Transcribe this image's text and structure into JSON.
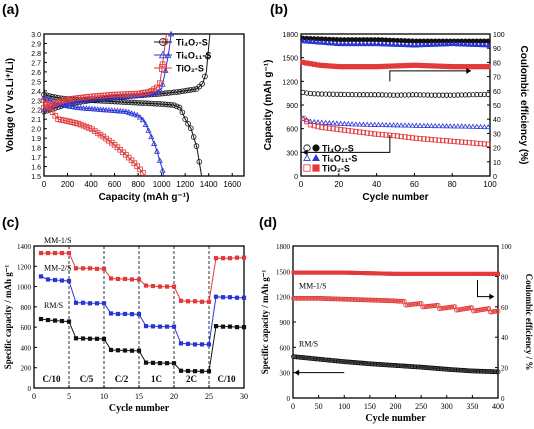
{
  "figure_title": "",
  "chart_data": [
    {
      "panel_label": "(a)",
      "type": "line",
      "title": "",
      "xlabel": "Capacity (mAh g⁻¹)",
      "ylabel": "Voltage (V vs.Li⁺/Li)",
      "xlim": [
        0,
        1700
      ],
      "ylim": [
        1.5,
        3.0
      ],
      "xticks": [
        "0",
        "200",
        "400",
        "600",
        "800",
        "1000",
        "1200",
        "1400",
        "1600"
      ],
      "yticks": [
        "1.5",
        "1.6",
        "1.7",
        "1.8",
        "1.9",
        "2.0",
        "2.1",
        "2.2",
        "2.3",
        "2.4",
        "2.5",
        "2.6",
        "2.7",
        "2.8",
        "2.9",
        "3.0"
      ],
      "legend_position": "top-right",
      "series": [
        {
          "name": "Ti₄O₇-S",
          "color": "#111111",
          "marker": "circle",
          "discharge": [
            [
              0,
              2.36
            ],
            [
              60,
              2.34
            ],
            [
              150,
              2.32
            ],
            [
              250,
              2.31
            ],
            [
              400,
              2.3
            ],
            [
              550,
              2.29
            ],
            [
              700,
              2.28
            ],
            [
              850,
              2.27
            ],
            [
              1000,
              2.26
            ],
            [
              1100,
              2.25
            ],
            [
              1160,
              2.22
            ],
            [
              1200,
              2.1
            ],
            [
              1250,
              2.0
            ],
            [
              1300,
              1.8
            ],
            [
              1340,
              1.5
            ]
          ],
          "charge": [
            [
              0,
              2.18
            ],
            [
              100,
              2.22
            ],
            [
              200,
              2.26
            ],
            [
              400,
              2.3
            ],
            [
              600,
              2.33
            ],
            [
              800,
              2.35
            ],
            [
              1000,
              2.37
            ],
            [
              1150,
              2.39
            ],
            [
              1300,
              2.42
            ],
            [
              1350,
              2.48
            ],
            [
              1380,
              2.6
            ],
            [
              1395,
              2.8
            ],
            [
              1410,
              3.0
            ]
          ]
        },
        {
          "name": "Ti₆O₁₁-S",
          "color": "#2b35d6",
          "marker": "triangle",
          "discharge": [
            [
              0,
              2.33
            ],
            [
              100,
              2.27
            ],
            [
              200,
              2.24
            ],
            [
              300,
              2.22
            ],
            [
              400,
              2.21
            ],
            [
              500,
              2.2
            ],
            [
              600,
              2.19
            ],
            [
              700,
              2.18
            ],
            [
              800,
              2.14
            ],
            [
              850,
              2.08
            ],
            [
              900,
              1.95
            ],
            [
              950,
              1.8
            ],
            [
              1000,
              1.6
            ],
            [
              1020,
              1.5
            ]
          ],
          "charge": [
            [
              0,
              2.2
            ],
            [
              100,
              2.25
            ],
            [
              200,
              2.28
            ],
            [
              400,
              2.31
            ],
            [
              600,
              2.33
            ],
            [
              800,
              2.35
            ],
            [
              950,
              2.38
            ],
            [
              1000,
              2.42
            ],
            [
              1030,
              2.6
            ],
            [
              1060,
              2.8
            ],
            [
              1080,
              3.0
            ]
          ]
        },
        {
          "name": "TiO₂-S",
          "color": "#e23a3a",
          "marker": "square",
          "discharge": [
            [
              0,
              2.3
            ],
            [
              40,
              2.24
            ],
            [
              80,
              2.16
            ],
            [
              120,
              2.1
            ],
            [
              200,
              2.08
            ],
            [
              300,
              2.05
            ],
            [
              400,
              2.0
            ],
            [
              500,
              1.92
            ],
            [
              600,
              1.83
            ],
            [
              700,
              1.72
            ],
            [
              780,
              1.62
            ],
            [
              830,
              1.55
            ],
            [
              860,
              1.5
            ]
          ],
          "charge": [
            [
              0,
              2.22
            ],
            [
              100,
              2.27
            ],
            [
              200,
              2.31
            ],
            [
              400,
              2.34
            ],
            [
              600,
              2.36
            ],
            [
              800,
              2.37
            ],
            [
              900,
              2.39
            ],
            [
              980,
              2.45
            ],
            [
              1000,
              2.6
            ],
            [
              1020,
              2.8
            ],
            [
              1040,
              3.0
            ]
          ]
        }
      ]
    },
    {
      "panel_label": "(b)",
      "type": "scatter",
      "title": "",
      "xlabel": "Cycle number",
      "ylabel": "Capacity (mAh g⁻¹)",
      "ylabel_right": "Coulombic efficiency (%)",
      "xlim": [
        0,
        100
      ],
      "ylim": [
        0,
        1800
      ],
      "ylim_right": [
        0,
        100
      ],
      "xticks": [
        "0",
        "20",
        "40",
        "60",
        "80",
        "100"
      ],
      "yticks": [
        "0",
        "300",
        "600",
        "900",
        "1200",
        "1500",
        "1800"
      ],
      "yticks_right": [
        "0",
        "10",
        "20",
        "30",
        "40",
        "50",
        "60",
        "70",
        "80",
        "90",
        "100"
      ],
      "legend_position": "bottom-left",
      "series": [
        {
          "name": "Ti₄O₇-S",
          "color": "#111111",
          "capacity": [
            [
              1,
              1060
            ],
            [
              5,
              1045
            ],
            [
              10,
              1040
            ],
            [
              20,
              1035
            ],
            [
              30,
              1030
            ],
            [
              40,
              1030
            ],
            [
              50,
              1025
            ],
            [
              60,
              1030
            ],
            [
              70,
              1025
            ],
            [
              80,
              1025
            ],
            [
              90,
              1030
            ],
            [
              100,
              1035
            ]
          ],
          "efficiency": [
            [
              1,
              97
            ],
            [
              20,
              96
            ],
            [
              40,
              96
            ],
            [
              60,
              95
            ],
            [
              80,
              95
            ],
            [
              100,
              95
            ]
          ]
        },
        {
          "name": "Ti₆O₁₁-S",
          "color": "#2b35d6",
          "capacity": [
            [
              1,
              730
            ],
            [
              5,
              690
            ],
            [
              10,
              680
            ],
            [
              20,
              665
            ],
            [
              30,
              655
            ],
            [
              40,
              650
            ],
            [
              50,
              645
            ],
            [
              60,
              640
            ],
            [
              70,
              635
            ],
            [
              80,
              632
            ],
            [
              90,
              628
            ],
            [
              100,
              620
            ]
          ],
          "efficiency": [
            [
              1,
              95
            ],
            [
              20,
              93
            ],
            [
              40,
              93
            ],
            [
              60,
              92
            ],
            [
              80,
              93
            ],
            [
              100,
              92
            ]
          ]
        },
        {
          "name": "TiO₂-S",
          "color": "#e23a3a",
          "capacity": [
            [
              1,
              730
            ],
            [
              5,
              650
            ],
            [
              10,
              620
            ],
            [
              20,
              590
            ],
            [
              30,
              560
            ],
            [
              40,
              530
            ],
            [
              50,
              510
            ],
            [
              60,
              480
            ],
            [
              70,
              460
            ],
            [
              80,
              440
            ],
            [
              90,
              420
            ],
            [
              100,
              400
            ]
          ],
          "efficiency": [
            [
              1,
              80
            ],
            [
              10,
              78
            ],
            [
              20,
              77
            ],
            [
              40,
              77
            ],
            [
              60,
              78
            ],
            [
              80,
              77
            ],
            [
              100,
              77
            ]
          ]
        }
      ]
    },
    {
      "panel_label": "(c)",
      "type": "scatter",
      "title": "",
      "xlabel": "Cycle number",
      "ylabel": "Specific capacity / mAh g⁻¹",
      "xlim": [
        0,
        30
      ],
      "ylim": [
        0,
        1400
      ],
      "xticks": [
        "0",
        "5",
        "10",
        "15",
        "20",
        "25",
        "30"
      ],
      "yticks": [
        "0",
        "200",
        "400",
        "600",
        "800",
        "1000",
        "1200",
        "1400"
      ],
      "rate_labels": [
        "C/10",
        "C/5",
        "C/2",
        "1C",
        "2C",
        "C/10"
      ],
      "rate_boundaries": [
        5,
        10,
        15,
        20,
        25
      ],
      "series": [
        {
          "name": "MM-1/S",
          "color": "#e23a3a",
          "values": [
            1330,
            1330,
            1330,
            1330,
            1330,
            1180,
            1180,
            1180,
            1175,
            1175,
            1080,
            1075,
            1075,
            1070,
            1070,
            1010,
            1005,
            1000,
            1000,
            1000,
            860,
            855,
            855,
            850,
            850,
            1280,
            1280,
            1280,
            1285,
            1285
          ]
        },
        {
          "name": "MM-2/S",
          "color": "#2b35d6",
          "values": [
            1100,
            1070,
            1065,
            1060,
            1055,
            840,
            840,
            835,
            835,
            835,
            735,
            730,
            730,
            728,
            728,
            610,
            608,
            605,
            605,
            605,
            440,
            435,
            430,
            430,
            430,
            900,
            895,
            895,
            890,
            890
          ]
        },
        {
          "name": "RM/S",
          "color": "#111111",
          "values": [
            680,
            670,
            665,
            660,
            655,
            490,
            488,
            486,
            485,
            484,
            375,
            372,
            370,
            368,
            368,
            250,
            248,
            245,
            245,
            244,
            170,
            168,
            166,
            165,
            165,
            610,
            605,
            605,
            600,
            600
          ]
        }
      ]
    },
    {
      "panel_label": "(d)",
      "type": "scatter",
      "title": "",
      "xlabel": "Cycle number",
      "ylabel": "Specific capacity / mAh g⁻¹",
      "ylabel_right": "Coulombic efficiency / %",
      "xlim": [
        0,
        400
      ],
      "ylim": [
        0,
        1800
      ],
      "ylim_right": [
        0,
        120
      ],
      "xticks": [
        "0",
        "50",
        "100",
        "150",
        "200",
        "250",
        "300",
        "350",
        "400"
      ],
      "yticks": [
        "0",
        "300",
        "600",
        "900",
        "1200",
        "1500",
        "1800"
      ],
      "yticks_right": [
        "0",
        "20",
        "40",
        "60",
        "80",
        "100"
      ],
      "series": [
        {
          "name": "MM-1/S",
          "color": "#e23a3a",
          "capacity": [
            [
              1,
              1180
            ],
            [
              50,
              1180
            ],
            [
              100,
              1170
            ],
            [
              150,
              1160
            ],
            [
              200,
              1150
            ],
            [
              220,
              1120
            ],
            [
              250,
              1100
            ],
            [
              280,
              1080
            ],
            [
              300,
              1070
            ],
            [
              320,
              1060
            ],
            [
              350,
              1050
            ],
            [
              380,
              1040
            ],
            [
              400,
              1030
            ]
          ],
          "efficiency": [
            [
              1,
              99
            ],
            [
              100,
              99
            ],
            [
              200,
              98
            ],
            [
              300,
              98
            ],
            [
              400,
              98
            ]
          ]
        },
        {
          "name": "RM/S",
          "color": "#111111",
          "capacity": [
            [
              1,
              490
            ],
            [
              50,
              460
            ],
            [
              100,
              430
            ],
            [
              150,
              405
            ],
            [
              200,
              385
            ],
            [
              250,
              365
            ],
            [
              300,
              340
            ],
            [
              350,
              320
            ],
            [
              400,
              310
            ]
          ]
        }
      ]
    }
  ]
}
